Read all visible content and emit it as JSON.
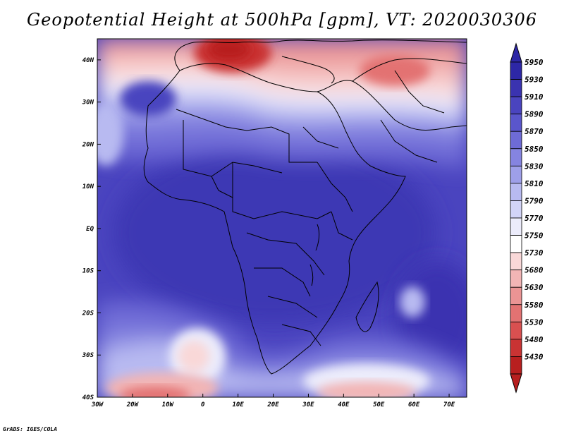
{
  "title": "Geopotential Height at 500hPa [gpm], VT: 2020030306",
  "credit": "GrADS: IGES/COLA",
  "map": {
    "variable": "Geopotential Height at 500hPa",
    "units": "gpm",
    "valid_time": "2020030306",
    "lon_range": [
      -30,
      75
    ],
    "lat_range": [
      -40,
      45
    ],
    "lon_ticks": [
      "30W",
      "20W",
      "10W",
      "0",
      "10E",
      "20E",
      "30E",
      "40E",
      "50E",
      "60E",
      "70E"
    ],
    "lat_ticks": [
      "40S",
      "30S",
      "20S",
      "10S",
      "EQ",
      "10N",
      "20N",
      "30N",
      "40N"
    ]
  },
  "colorbar": {
    "levels": [
      "5950",
      "5930",
      "5910",
      "5890",
      "5870",
      "5850",
      "5830",
      "5810",
      "5790",
      "5770",
      "5750",
      "5730",
      "5680",
      "5630",
      "5580",
      "5530",
      "5480",
      "5430"
    ],
    "colors": [
      "#2d27a6",
      "#3a33b0",
      "#4a44bf",
      "#5a56cc",
      "#6e6bd6",
      "#8584e0",
      "#9e9fe9",
      "#b8baf1",
      "#d2d4f7",
      "#ececfb",
      "#ffffff",
      "#f9d8d8",
      "#f2b5b5",
      "#eb9494",
      "#e37272",
      "#d95050",
      "#c93333",
      "#b81f1f"
    ]
  }
}
